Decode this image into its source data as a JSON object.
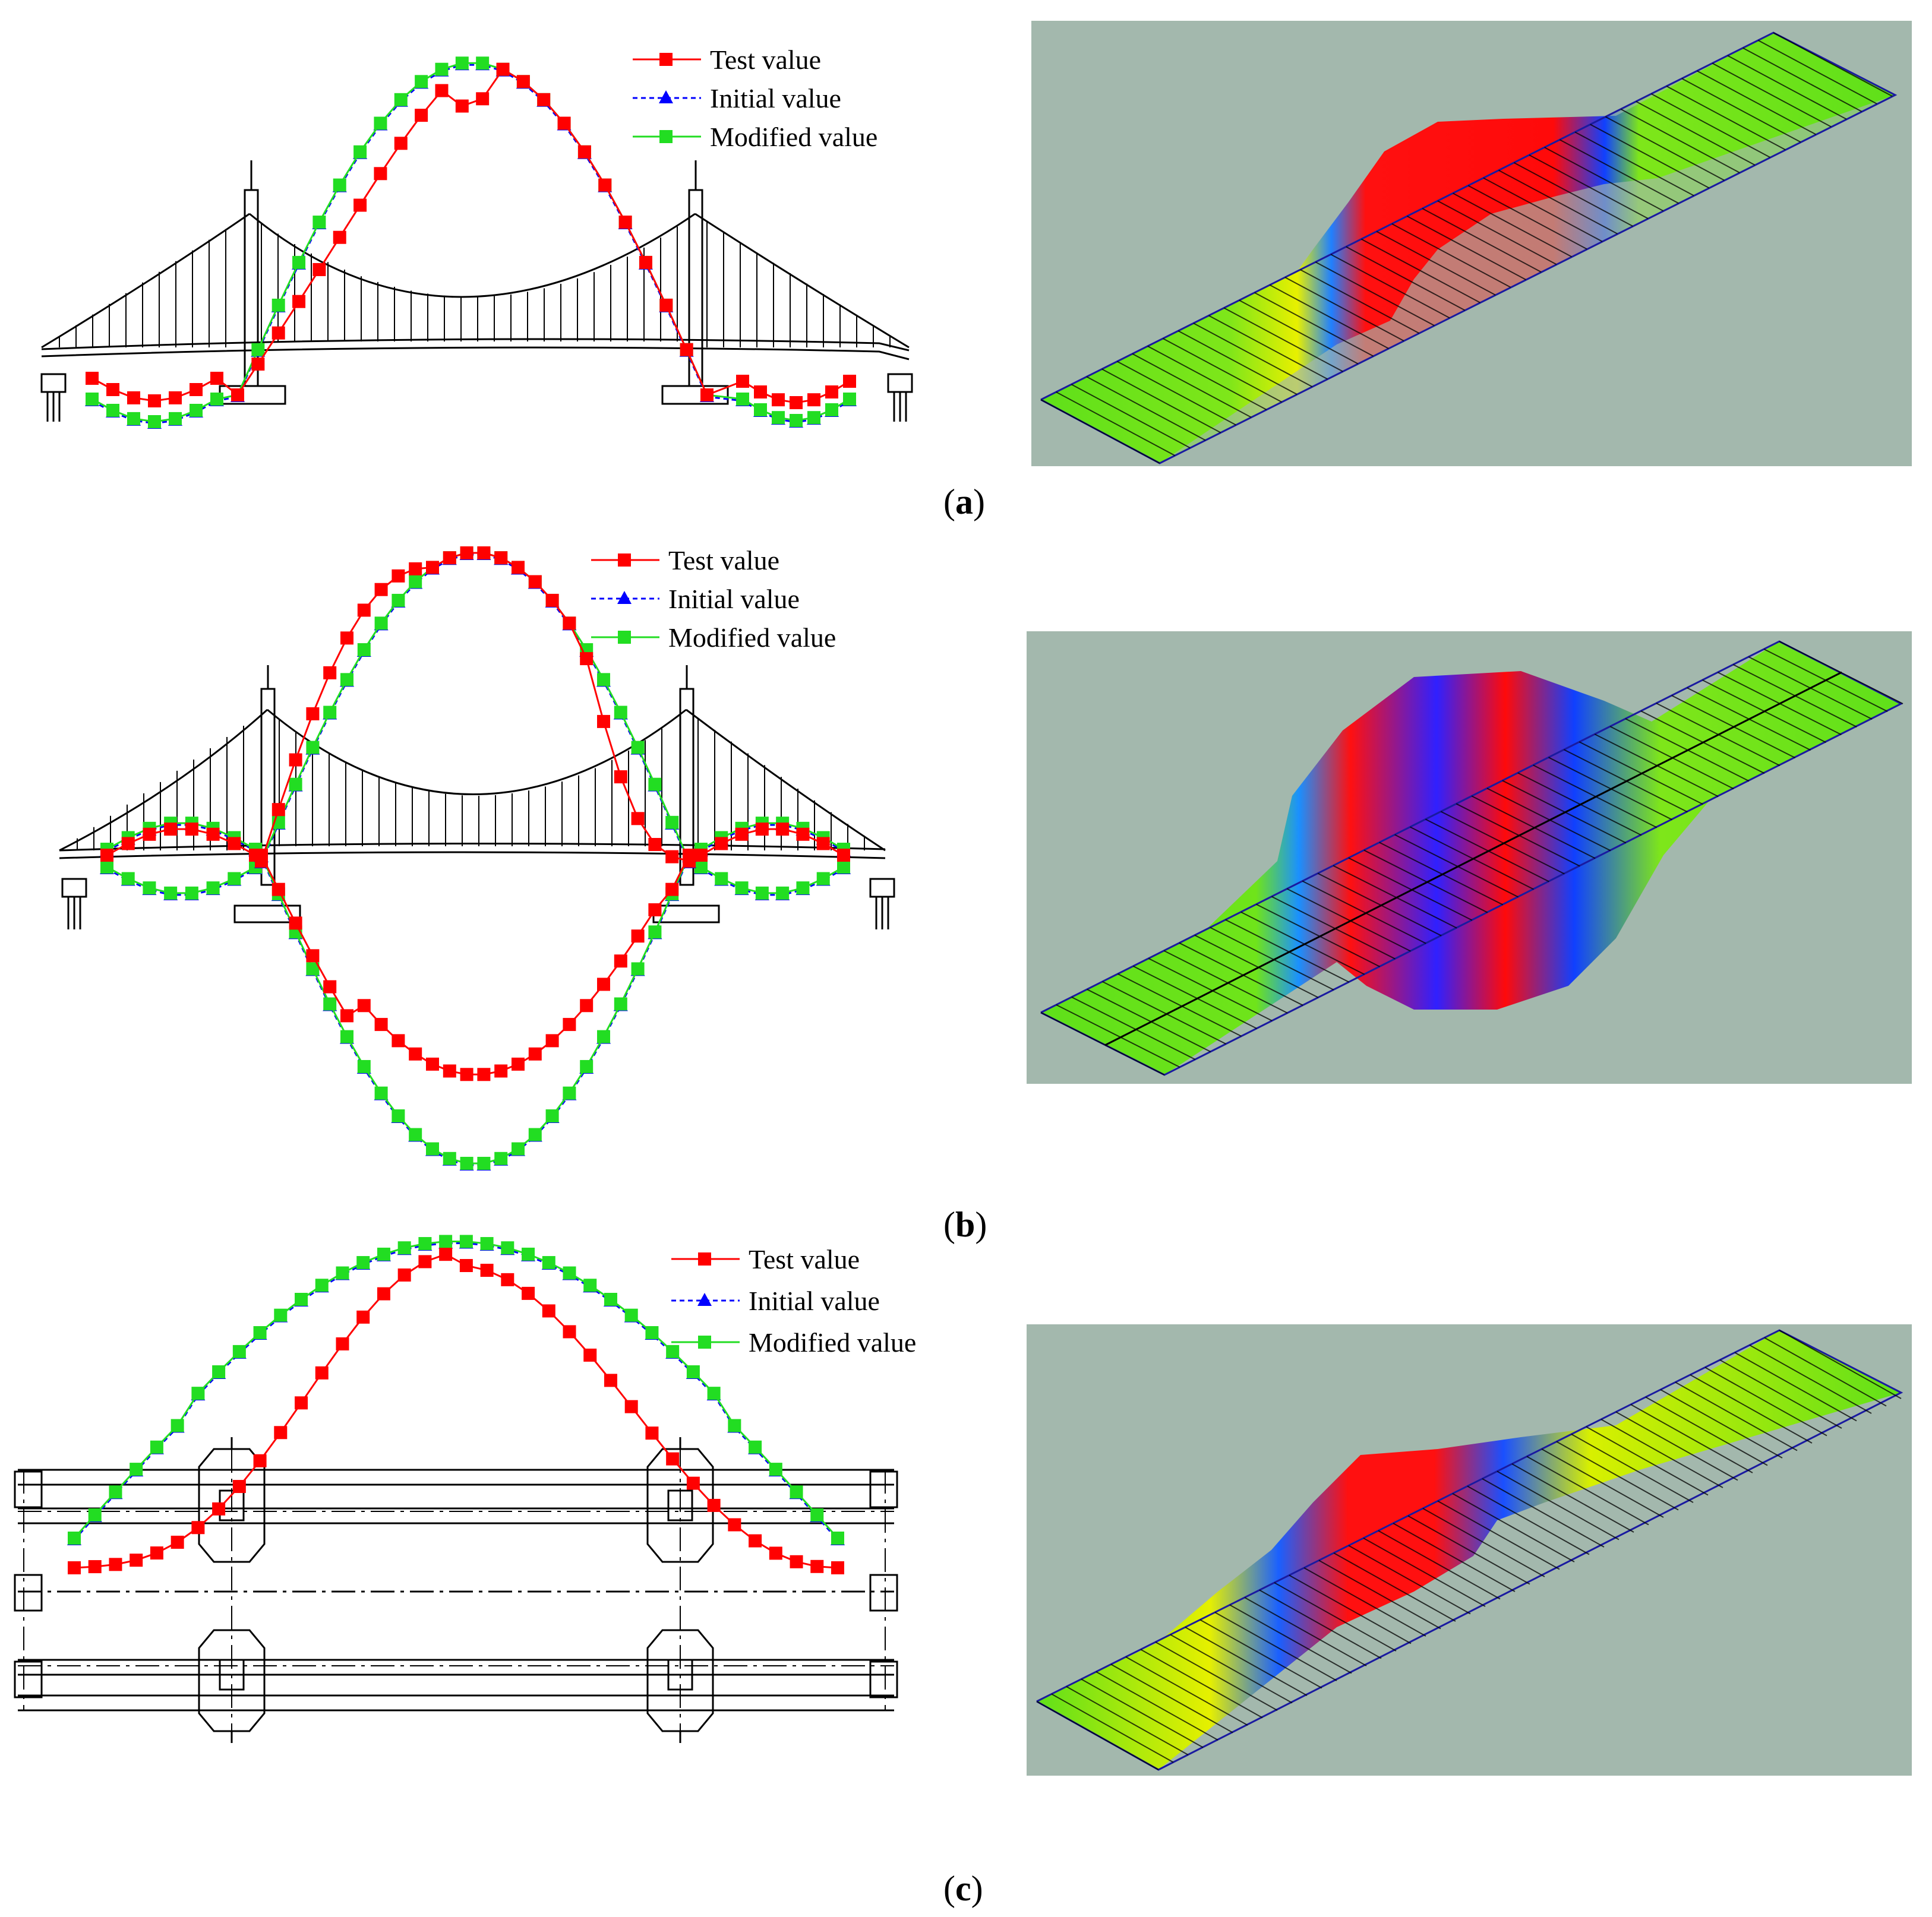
{
  "legend": {
    "test": "Test value",
    "initial": "Initial value",
    "modified": "Modified value"
  },
  "captions": {
    "a": "a",
    "b": "b",
    "c": "c"
  },
  "colors": {
    "test": "#ff0000",
    "initial": "#0000ff",
    "modified": "#22dd22",
    "render_bg": "#a3b8ad",
    "mesh_edge": "#1a1aa0"
  },
  "icons": {
    "test_marker": "square-marker",
    "initial_marker": "triangle-marker",
    "modified_marker": "square-marker"
  }
}
